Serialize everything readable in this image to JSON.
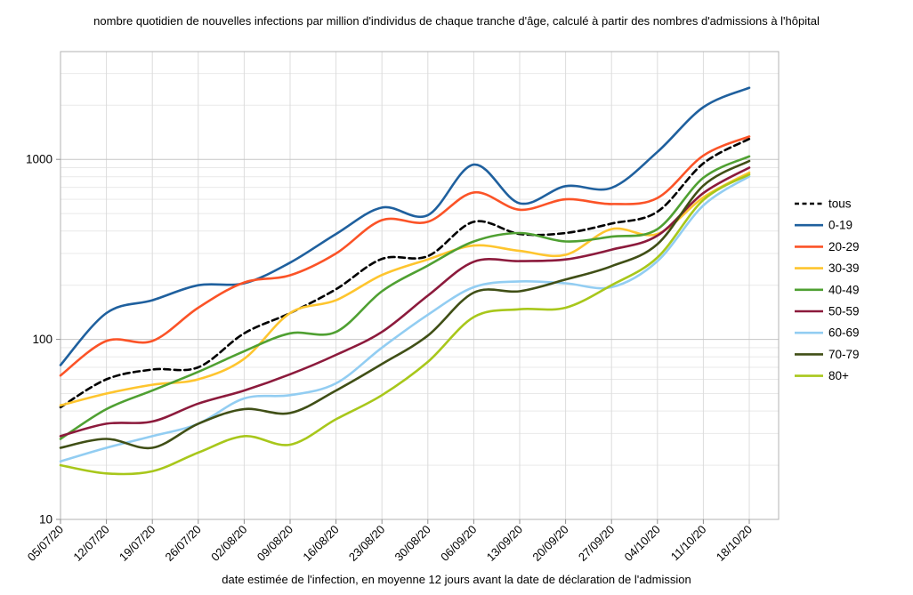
{
  "chart_data": {
    "type": "line",
    "title": "nombre quotidien de nouvelles infections par million d'individus de chaque tranche d'âge, calculé à partir des nombres d'admissions à l'hôpital",
    "xlabel": "date estimée de l'infection, en moyenne 12 jours avant la date de déclaration de l'admission",
    "ylabel": "",
    "y_scale": "log",
    "y_ticks": [
      10,
      100,
      1000
    ],
    "ylim": [
      10,
      4000
    ],
    "grid": {
      "major_color": "#c6c6c6",
      "minor_color": "#e9e9e9",
      "vertical_color": "#dcdcdc",
      "border_color": "#b3b3b3",
      "tick_color": "#8f8f8f"
    },
    "legend_position": "right",
    "x": [
      "05/07/20",
      "12/07/20",
      "19/07/20",
      "26/07/20",
      "02/08/20",
      "09/08/20",
      "16/08/20",
      "23/08/20",
      "30/08/20",
      "06/09/20",
      "13/09/20",
      "20/09/20",
      "27/09/20",
      "04/10/20",
      "11/10/20",
      "18/10/20"
    ],
    "series": [
      {
        "name": "tous",
        "color": "#000000",
        "dashed": true,
        "values": [
          42,
          60,
          68,
          70,
          108,
          140,
          190,
          280,
          290,
          450,
          385,
          390,
          440,
          512,
          950,
          1300
        ]
      },
      {
        "name": "0-19",
        "color": "#1f609e",
        "dashed": false,
        "values": [
          72,
          140,
          165,
          200,
          205,
          267,
          385,
          540,
          490,
          935,
          570,
          710,
          695,
          1100,
          1950,
          2500
        ]
      },
      {
        "name": "20-29",
        "color": "#fb5327",
        "dashed": false,
        "values": [
          63,
          98,
          98,
          150,
          207,
          227,
          300,
          460,
          450,
          655,
          525,
          600,
          565,
          610,
          1050,
          1340
        ]
      },
      {
        "name": "30-39",
        "color": "#fec52e",
        "dashed": false,
        "values": [
          43,
          50,
          56,
          60,
          78,
          140,
          165,
          228,
          278,
          332,
          310,
          295,
          410,
          385,
          615,
          845
        ]
      },
      {
        "name": "40-49",
        "color": "#4fa032",
        "dashed": false,
        "values": [
          28,
          41,
          52,
          66,
          86,
          108,
          110,
          185,
          257,
          350,
          390,
          350,
          372,
          410,
          790,
          1040
        ]
      },
      {
        "name": "50-59",
        "color": "#8c1a3c",
        "dashed": false,
        "values": [
          29,
          34,
          35,
          44,
          52,
          64,
          82,
          110,
          175,
          270,
          272,
          278,
          315,
          377,
          650,
          900
        ]
      },
      {
        "name": "60-69",
        "color": "#92cdf2",
        "dashed": false,
        "values": [
          21,
          25,
          29,
          34,
          47,
          49,
          57,
          90,
          137,
          195,
          210,
          205,
          195,
          272,
          555,
          805
        ]
      },
      {
        "name": "70-79",
        "color": "#404f16",
        "dashed": false,
        "values": [
          25,
          28,
          25,
          34,
          41,
          39,
          52,
          73,
          105,
          182,
          185,
          215,
          255,
          338,
          715,
          980
        ]
      },
      {
        "name": "80+",
        "color": "#a8c71b",
        "dashed": false,
        "values": [
          20,
          18,
          18.5,
          23.5,
          29,
          26,
          36,
          49,
          75,
          133,
          147,
          150,
          200,
          285,
          595,
          825
        ]
      }
    ]
  }
}
